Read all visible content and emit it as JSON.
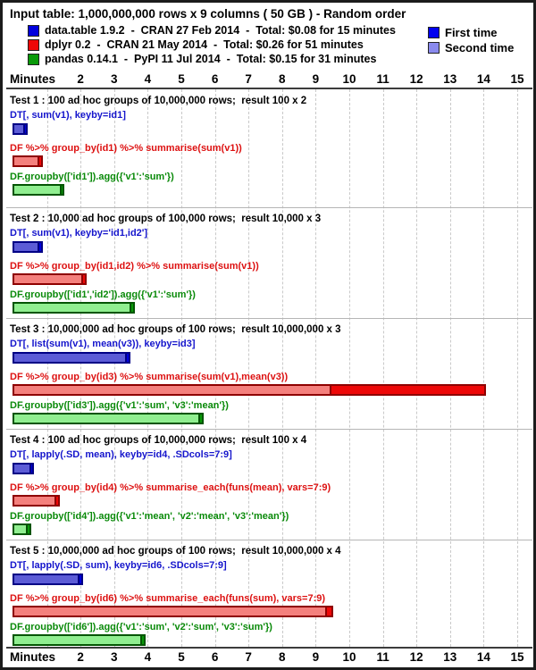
{
  "header": {
    "title": "Input table: 1,000,000,000 rows x 9 columns ( 50 GB ) - Random order",
    "libraries": [
      {
        "name": "data.table",
        "label": "data.table 1.9.2  -  CRAN 27 Feb 2014  -  Total: $0.08 for 15 minutes"
      },
      {
        "name": "dplyr",
        "label": "dplyr 0.2  -  CRAN 21 May 2014  -  Total: $0.26 for 51 minutes"
      },
      {
        "name": "pandas",
        "label": "pandas 0.14.1  -  PyPI 11 Jul 2014  -  Total: $0.15 for 31 minutes"
      }
    ],
    "run_legend": [
      {
        "name": "first-time",
        "label": "First time",
        "color": "#0202ee"
      },
      {
        "name": "second-time",
        "label": "Second time",
        "color": "#8a8aee"
      }
    ]
  },
  "axis": {
    "label": "Minutes",
    "ticks": [
      2,
      3,
      4,
      5,
      6,
      7,
      8,
      9,
      10,
      11,
      12,
      13,
      14,
      15
    ],
    "gridline_minutes": [
      1,
      2,
      3,
      4,
      5,
      6,
      7,
      8,
      9,
      10,
      11,
      12,
      13,
      14,
      15
    ]
  },
  "colors": {
    "data.table": {
      "text": "#1515cc",
      "border": "#000085",
      "first": "#0000dd",
      "second": "#5c5cd6"
    },
    "dplyr": {
      "text": "#dd1111",
      "border": "#8e0000",
      "first": "#ee0808",
      "second": "#f4807d"
    },
    "pandas": {
      "text": "#0a8a0a",
      "border": "#035503",
      "first": "#0a9a0a",
      "second": "#90ee90"
    }
  },
  "chart_data": {
    "type": "bar",
    "unit": "minutes",
    "xlim": [
      0,
      15
    ],
    "series_note": "each bar shows first-time run (outer/dark) and second-time run (inner/light)",
    "tests": [
      {
        "title": "Test 1 : 100 ad hoc groups of 10,000,000 rows;  result 100 x 2",
        "bars": [
          {
            "library": "data.table",
            "code": "DT[, sum(v1), keyby=id1]",
            "first": 0.45,
            "second": 0.42
          },
          {
            "library": "dplyr",
            "code": "DF %>% group_by(id1) %>% summarise(sum(v1))",
            "first": 0.9,
            "second": 0.85
          },
          {
            "library": "pandas",
            "code": "DF.groupby(['id1']).agg({'v1':'sum'})",
            "first": 1.55,
            "second": 1.5
          }
        ]
      },
      {
        "title": "Test 2 : 10,000 ad hoc groups of 100,000 rows;  result 10,000 x 3",
        "bars": [
          {
            "library": "data.table",
            "code": "DT[, sum(v1), keyby='id1,id2']",
            "first": 0.9,
            "second": 0.85
          },
          {
            "library": "dplyr",
            "code": "DF %>% group_by(id1,id2) %>% summarise(sum(v1))",
            "first": 2.2,
            "second": 2.15
          },
          {
            "library": "pandas",
            "code": "DF.groupby(['id1','id2']).agg({'v1':'sum'})",
            "first": 3.65,
            "second": 3.6
          }
        ]
      },
      {
        "title": "Test 3 : 10,000,000 ad hoc groups of 100 rows;  result 10,000,000 x 3",
        "bars": [
          {
            "library": "data.table",
            "code": "DT[, list(sum(v1), mean(v3)), keyby=id3]",
            "first": 3.5,
            "second": 3.45
          },
          {
            "library": "dplyr",
            "code": "DF %>% group_by(id3) %>% summarise(sum(v1),mean(v3))",
            "first": 14.1,
            "second": 9.5
          },
          {
            "library": "pandas",
            "code": "DF.groupby(['id3']).agg({'v1':'sum', 'v3':'mean'})",
            "first": 5.7,
            "second": 5.65
          }
        ]
      },
      {
        "title": "Test 4 : 100 ad hoc groups of 10,000,000 rows;  result 100 x 4",
        "bars": [
          {
            "library": "data.table",
            "code": "DT[, lapply(.SD, mean), keyby=id4, .SDcols=7:9]",
            "first": 0.65,
            "second": 0.6
          },
          {
            "library": "dplyr",
            "code": "DF %>% group_by(id4) %>% summarise_each(funs(mean), vars=7:9)",
            "first": 1.4,
            "second": 1.35
          },
          {
            "library": "pandas",
            "code": "DF.groupby(['id4']).agg({'v1':'mean', 'v2':'mean', 'v3':'mean'})",
            "first": 0.55,
            "second": 0.5
          }
        ]
      },
      {
        "title": "Test 5 : 10,000,000 ad hoc groups of 100 rows;  result 10,000,000 x 4",
        "bars": [
          {
            "library": "data.table",
            "code": "DT[, lapply(.SD, sum), keyby=id6, .SDcols=7:9]",
            "first": 2.1,
            "second": 2.05
          },
          {
            "library": "dplyr",
            "code": "DF %>% group_by(id6) %>% summarise_each(funs(sum), vars=7:9)",
            "first": 9.55,
            "second": 9.4
          },
          {
            "library": "pandas",
            "code": "DF.groupby(['id6']).agg({'v1':'sum', 'v2':'sum', 'v3':'sum'})",
            "first": 3.95,
            "second": 3.9
          }
        ]
      }
    ]
  }
}
